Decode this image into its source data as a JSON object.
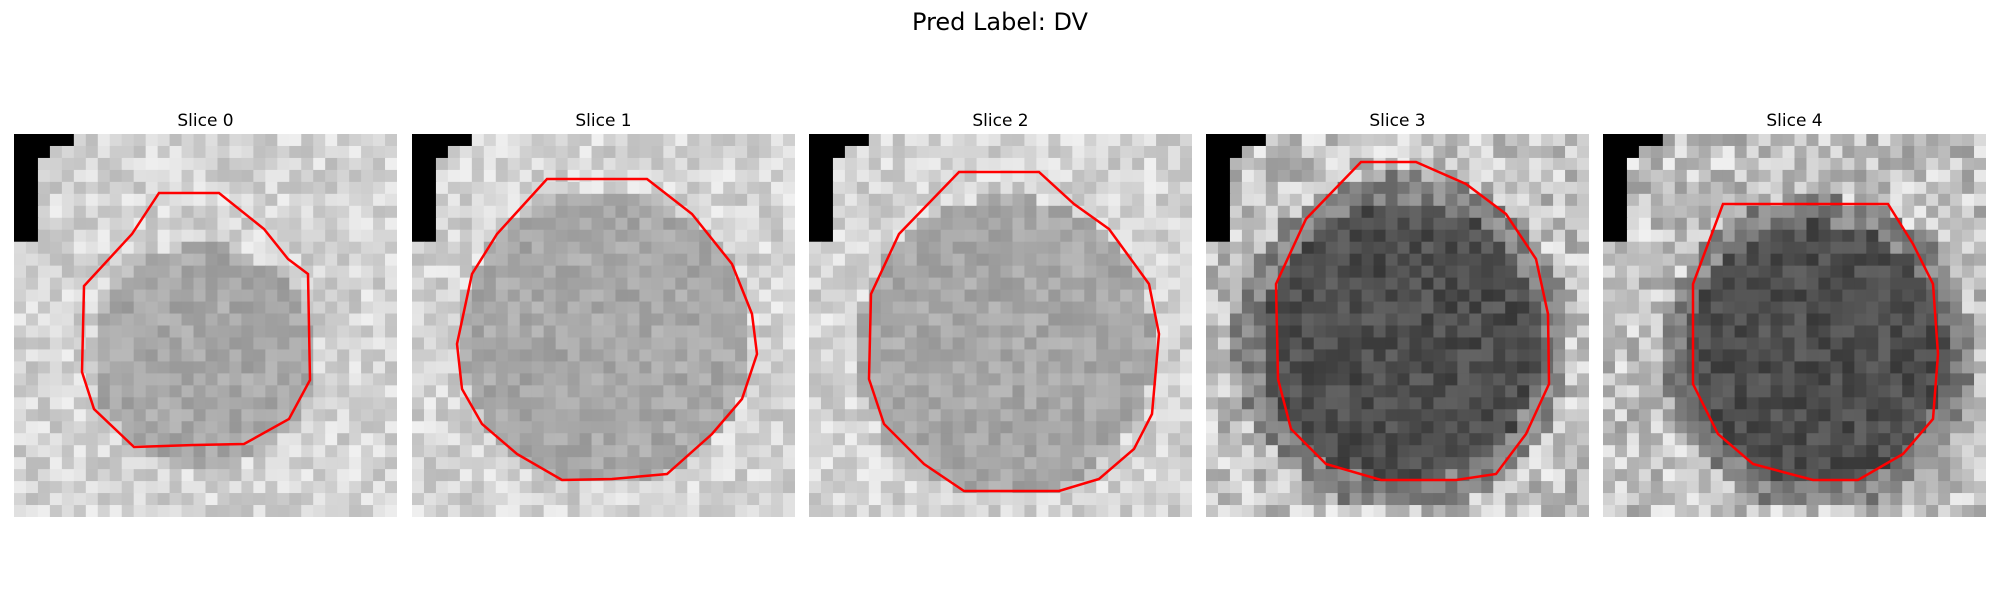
{
  "figure": {
    "title": "Pred Label: DV"
  },
  "panels": [
    {
      "label": "Slice 0",
      "intensity": "light",
      "contour_color": "#ff0000"
    },
    {
      "label": "Slice 1",
      "intensity": "light",
      "contour_color": "#ff0000"
    },
    {
      "label": "Slice 2",
      "intensity": "light",
      "contour_color": "#ff0000"
    },
    {
      "label": "Slice 3",
      "intensity": "dark",
      "contour_color": "#ff0000"
    },
    {
      "label": "Slice 4",
      "intensity": "dark",
      "contour_color": "#ff0000"
    }
  ]
}
